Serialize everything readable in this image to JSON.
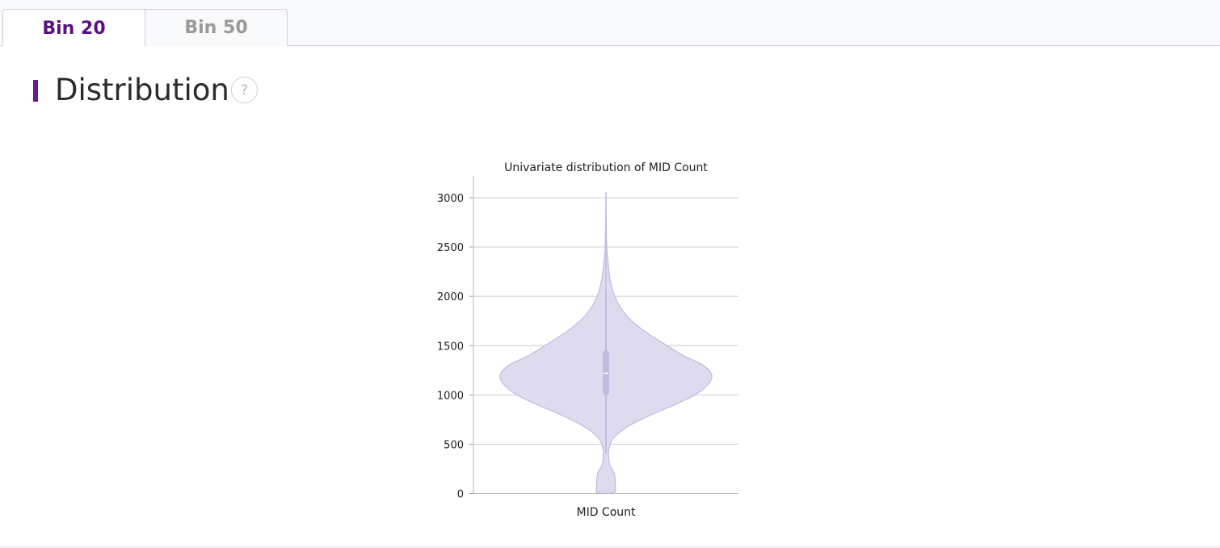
{
  "tabs": [
    {
      "label": "Bin 20",
      "active": true
    },
    {
      "label": "Bin 50",
      "active": false
    }
  ],
  "section": {
    "title": "Distribution",
    "help_glyph": "?",
    "help_icon": "question-circle-icon"
  },
  "colors": {
    "accent": "#6a1b8c",
    "tab_active_text": "#5c0f84",
    "violin_fill": "#dedbee",
    "violin_stroke": "#bab3db",
    "box_fill": "#c2bbe0",
    "grid": "#cdcdd4"
  },
  "chart_data": {
    "type": "violin",
    "title": "Univariate distribution of MID Count",
    "xlabel": "",
    "ylabel": "",
    "categories": [
      "MID Count"
    ],
    "ylim": [
      0,
      3200
    ],
    "yticks": [
      0,
      500,
      1000,
      1500,
      2000,
      2500,
      3000
    ],
    "grid": true,
    "legend": "none",
    "density_profile": [
      {
        "y": 0,
        "width": 0.09
      },
      {
        "y": 60,
        "width": 0.09
      },
      {
        "y": 200,
        "width": 0.08
      },
      {
        "y": 280,
        "width": 0.04
      },
      {
        "y": 330,
        "width": 0.03
      },
      {
        "y": 420,
        "width": 0.025
      },
      {
        "y": 500,
        "width": 0.04
      },
      {
        "y": 560,
        "width": 0.07
      },
      {
        "y": 630,
        "width": 0.14
      },
      {
        "y": 700,
        "width": 0.24
      },
      {
        "y": 800,
        "width": 0.43
      },
      {
        "y": 900,
        "width": 0.65
      },
      {
        "y": 1000,
        "width": 0.84
      },
      {
        "y": 1100,
        "width": 0.96
      },
      {
        "y": 1200,
        "width": 1.0
      },
      {
        "y": 1300,
        "width": 0.92
      },
      {
        "y": 1400,
        "width": 0.73
      },
      {
        "y": 1500,
        "width": 0.58
      },
      {
        "y": 1600,
        "width": 0.43
      },
      {
        "y": 1700,
        "width": 0.3
      },
      {
        "y": 1800,
        "width": 0.2
      },
      {
        "y": 1900,
        "width": 0.13
      },
      {
        "y": 2000,
        "width": 0.085
      },
      {
        "y": 2100,
        "width": 0.055
      },
      {
        "y": 2200,
        "width": 0.035
      },
      {
        "y": 2350,
        "width": 0.02
      },
      {
        "y": 2500,
        "width": 0.008
      },
      {
        "y": 2700,
        "width": 0.004
      },
      {
        "y": 3060,
        "width": 0.0
      }
    ],
    "box": {
      "whisker_low": 410,
      "q1": 1000,
      "median": 1220,
      "q3": 1450,
      "whisker_high": 2060,
      "min": 0,
      "max": 3060
    }
  }
}
